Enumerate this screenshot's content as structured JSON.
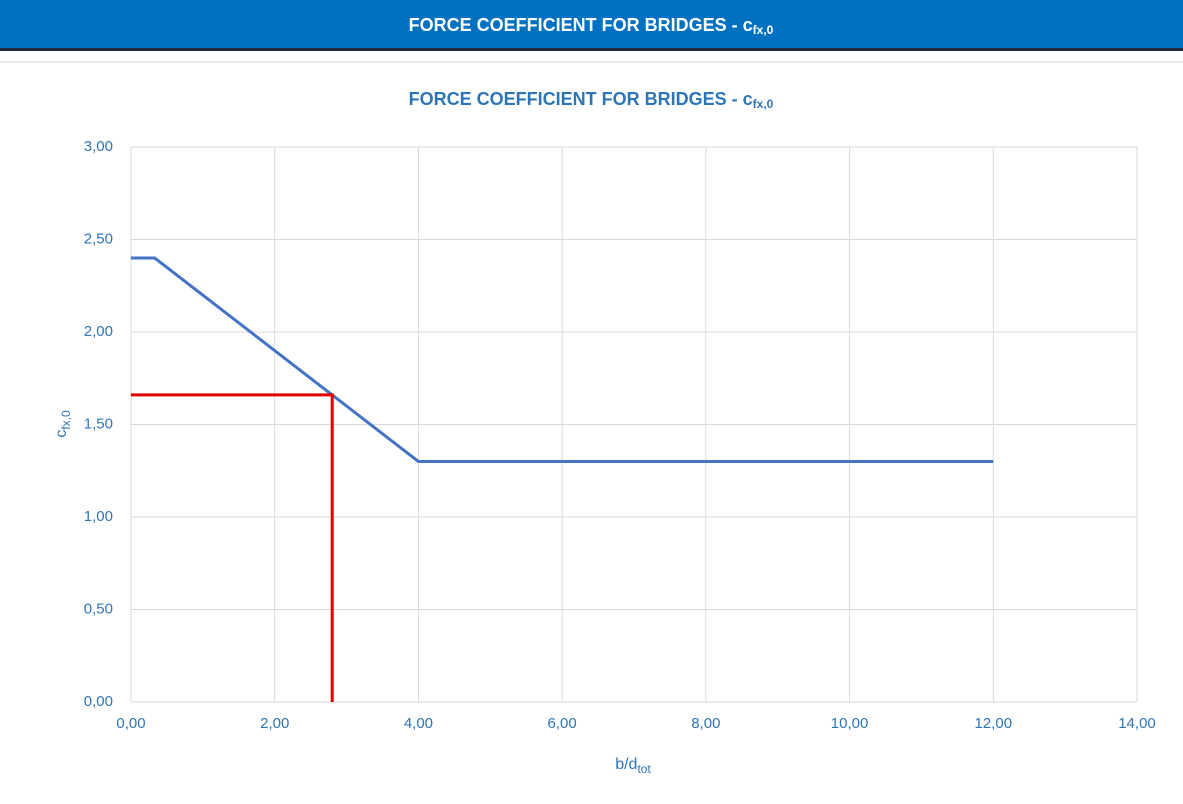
{
  "header": {
    "title": "FORCE COEFFICIENT FOR BRIDGES - c",
    "title_subscript": "fx,0"
  },
  "chart_data": {
    "type": "line",
    "title": "FORCE COEFFICIENT FOR BRIDGES - c",
    "title_subscript": "fx,0",
    "x_label": "b/d",
    "x_label_subscript": "tot",
    "y_label": "c",
    "y_label_subscript": "fx,0",
    "xlim": [
      0,
      14
    ],
    "ylim": [
      0,
      3
    ],
    "xticks": [
      {
        "value": 0,
        "label": "0,00"
      },
      {
        "value": 2,
        "label": "2,00"
      },
      {
        "value": 4,
        "label": "4,00"
      },
      {
        "value": 6,
        "label": "6,00"
      },
      {
        "value": 8,
        "label": "8,00"
      },
      {
        "value": 10,
        "label": "10,00"
      },
      {
        "value": 12,
        "label": "12,00"
      },
      {
        "value": 14,
        "label": "14,00"
      }
    ],
    "yticks": [
      {
        "value": 0,
        "label": "0,00"
      },
      {
        "value": 0.5,
        "label": "0,50"
      },
      {
        "value": 1,
        "label": "1,00"
      },
      {
        "value": 1.5,
        "label": "1,50"
      },
      {
        "value": 2,
        "label": "2,00"
      },
      {
        "value": 2.5,
        "label": "2,50"
      },
      {
        "value": 3,
        "label": "3,00"
      }
    ],
    "grid": true,
    "series": [
      {
        "color": "#4472c4",
        "x": [
          0,
          0.33,
          4,
          12
        ],
        "values": [
          2.4,
          2.4,
          1.3,
          1.3
        ]
      },
      {
        "color": "#e00000",
        "x": [
          0,
          2.8,
          2.8
        ],
        "values": [
          1.66,
          1.66,
          0
        ]
      }
    ]
  }
}
